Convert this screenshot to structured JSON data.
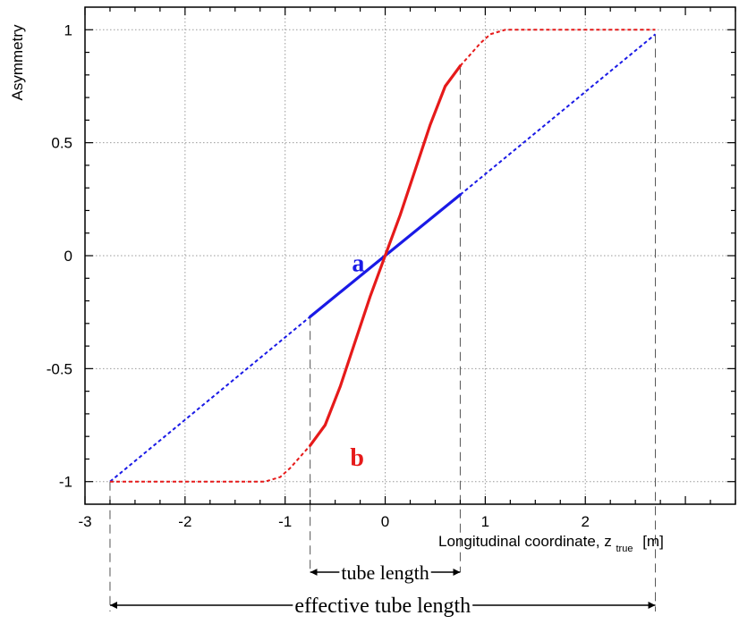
{
  "chart_data": {
    "type": "line",
    "ylabel": "Asymmetry",
    "xlabel": {
      "main": "Longitudinal coordinate, z",
      "subscript": "true",
      "unit": "[m]"
    },
    "xlim": [
      -3,
      3.5
    ],
    "ylim": [
      -1.1,
      1.1
    ],
    "xticks": [
      -3,
      -2,
      -1,
      0,
      1,
      2
    ],
    "xtick_labels": [
      "-3",
      "-2",
      "-1",
      "0",
      "1",
      "2"
    ],
    "yticks": [
      -1,
      -0.5,
      0,
      0.5,
      1
    ],
    "ytick_labels": [
      "-1",
      "-0.5",
      "0",
      "0.5",
      "1"
    ],
    "grid": true,
    "colors": {
      "a": "#1a1ae6",
      "b": "#e61a1a",
      "guide": "#555555"
    },
    "series": [
      {
        "name": "a",
        "color": "#1a1ae6",
        "solid": {
          "x": [
            -0.75,
            0.0,
            0.75
          ],
          "y": [
            -0.27,
            0.0,
            0.27
          ]
        },
        "dashed_segments": [
          {
            "x": [
              -2.75,
              -0.75
            ],
            "y": [
              -1.0,
              -0.27
            ]
          },
          {
            "x": [
              0.75,
              2.7
            ],
            "y": [
              0.27,
              0.98
            ]
          }
        ]
      },
      {
        "name": "b",
        "color": "#e61a1a",
        "solid": {
          "x": [
            -0.75,
            -0.6,
            -0.45,
            -0.3,
            -0.15,
            0.0,
            0.15,
            0.3,
            0.45,
            0.6,
            0.75
          ],
          "y": [
            -0.84,
            -0.75,
            -0.58,
            -0.38,
            -0.18,
            0.0,
            0.18,
            0.38,
            0.58,
            0.75,
            0.84
          ]
        },
        "dashed_segments": [
          {
            "x": [
              -2.75,
              -1.2,
              -1.05,
              -0.95,
              -0.85,
              -0.75
            ],
            "y": [
              -1.0,
              -1.0,
              -0.98,
              -0.94,
              -0.89,
              -0.84
            ]
          },
          {
            "x": [
              0.75,
              0.85,
              0.95,
              1.05,
              1.2,
              2.7
            ],
            "y": [
              0.84,
              0.89,
              0.94,
              0.98,
              1.0,
              1.0
            ]
          }
        ]
      }
    ],
    "annotations": {
      "tube_length": {
        "label": "tube length",
        "x": [
          -0.75,
          0.75
        ]
      },
      "effective_tube_length": {
        "label": "effective tube length",
        "x": [
          -2.75,
          2.7
        ]
      }
    }
  }
}
